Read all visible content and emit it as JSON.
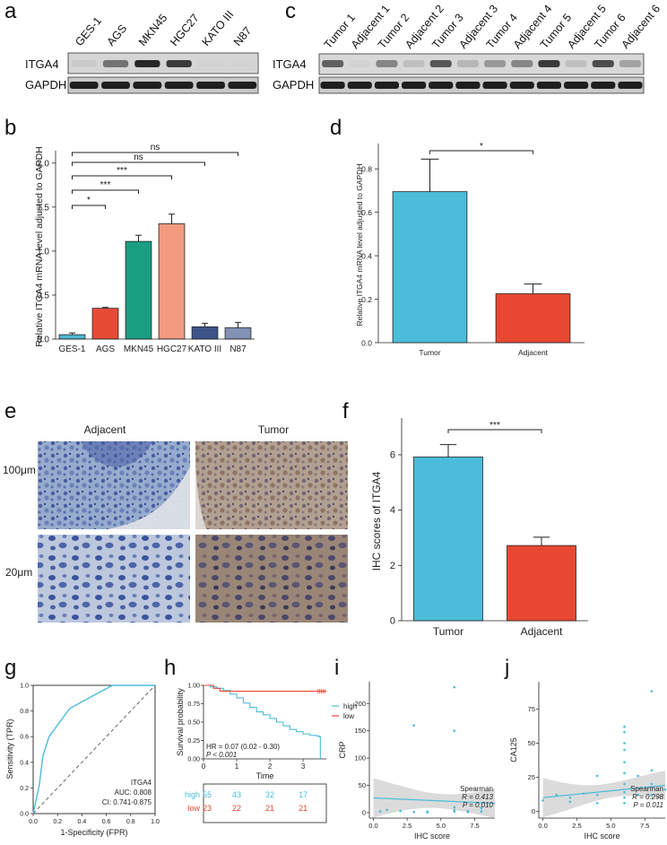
{
  "panel_labels": {
    "a": "a",
    "b": "b",
    "c": "c",
    "d": "d",
    "e": "e",
    "f": "f",
    "g": "g",
    "h": "h",
    "i": "i",
    "j": "j"
  },
  "blot_a": {
    "lanes": [
      "GES-1",
      "AGS",
      "MKN45",
      "HGC27",
      "KATO III",
      "N87"
    ],
    "rows": [
      "ITGA4",
      "GAPDH"
    ],
    "itga4_intensity": [
      0.1,
      0.55,
      0.95,
      0.85,
      0.05,
      0.05
    ]
  },
  "blot_c": {
    "lanes": [
      "Tumor 1",
      "Adjacent 1",
      "Tumor 2",
      "Adjacent 2",
      "Tumor 3",
      "Adjacent 3",
      "Tumor 4",
      "Adjacent 4",
      "Tumor 5",
      "Adjacent 5",
      "Tumor 6",
      "Adjacent 6"
    ],
    "rows": [
      "ITGA4",
      "GAPDH"
    ],
    "itga4_intensity": [
      0.65,
      0.05,
      0.45,
      0.15,
      0.7,
      0.2,
      0.35,
      0.45,
      0.85,
      0.15,
      0.75,
      0.3
    ]
  },
  "histology": {
    "columns": [
      "Adjacent",
      "Tumor"
    ],
    "rows": [
      "100μm",
      "20μm"
    ]
  },
  "chart_data": [
    {
      "id": "b",
      "type": "bar",
      "categories": [
        "GES-1",
        "AGS",
        "MKN45",
        "HGC27",
        "KATO III",
        "N87"
      ],
      "values": [
        0.05,
        0.35,
        1.11,
        1.31,
        0.14,
        0.13
      ],
      "errors": [
        0.02,
        0.01,
        0.07,
        0.11,
        0.04,
        0.06
      ],
      "colors": [
        "#4fb8cf",
        "#e84b35",
        "#1a9e81",
        "#f29b7e",
        "#3d5488",
        "#8391b5"
      ],
      "ylabel": "Relative ITGA4 mRNA level adjusted to GAPDH",
      "ylim": [
        0,
        2.1
      ],
      "yticks": [
        "0.0",
        "0.5",
        "1.0",
        "1.5",
        "2.0"
      ],
      "comparisons": [
        {
          "from": "GES-1",
          "to": "AGS",
          "label": "*"
        },
        {
          "from": "GES-1",
          "to": "MKN45",
          "label": "***"
        },
        {
          "from": "GES-1",
          "to": "HGC27",
          "label": "***"
        },
        {
          "from": "GES-1",
          "to": "KATO III",
          "label": "ns"
        },
        {
          "from": "GES-1",
          "to": "N87",
          "label": "ns"
        }
      ]
    },
    {
      "id": "d",
      "type": "bar",
      "categories": [
        "Tumor",
        "Adjacent"
      ],
      "values": [
        0.695,
        0.225
      ],
      "errors": [
        0.15,
        0.045
      ],
      "colors": [
        "#4bbcd9",
        "#e84832"
      ],
      "ylabel": "Relative ITGA4 mRNA level adjusted to GAPDH",
      "ylim": [
        0,
        0.9
      ],
      "yticks": [
        "0.0",
        "0.2",
        "0.4",
        "0.6",
        "0.8"
      ],
      "comparison": "*"
    },
    {
      "id": "f",
      "type": "bar",
      "categories": [
        "Tumor",
        "Adjacent"
      ],
      "values": [
        5.92,
        2.72
      ],
      "errors": [
        0.45,
        0.3
      ],
      "colors": [
        "#4bbcd9",
        "#e84832"
      ],
      "ylabel": "IHC scores of ITGA4",
      "ylim": [
        0,
        7.2
      ],
      "yticks": [
        "0",
        "2",
        "4",
        "6"
      ],
      "comparison": "***"
    },
    {
      "id": "g",
      "type": "line",
      "title": "ROC",
      "x": [
        0,
        0.05,
        0.08,
        0.13,
        0.3,
        0.65,
        1.0
      ],
      "y": [
        0,
        0.22,
        0.45,
        0.6,
        0.82,
        1.0,
        1.0
      ],
      "xlabel": "1-Specificity (FPR)",
      "ylabel": "Sensitivity (TPR)",
      "xlim": [
        0,
        1
      ],
      "ylim": [
        0,
        1
      ],
      "ticks": [
        "0.0",
        "0.2",
        "0.4",
        "0.6",
        "0.8",
        "1.0"
      ],
      "annotation": [
        "ITGA4",
        "AUC: 0.808",
        "CI: 0.741-0.875"
      ]
    },
    {
      "id": "h",
      "type": "line",
      "xlabel": "Time",
      "ylabel": "Survival probability",
      "xlim": [
        0,
        3.7
      ],
      "ylim": [
        0,
        1
      ],
      "xticks": [
        "0",
        "1",
        "2",
        "3"
      ],
      "yticks": [
        "0.00",
        "0.25",
        "0.50",
        "0.75",
        "1.00"
      ],
      "series": [
        {
          "name": "high",
          "color": "#4bbcd9",
          "x": [
            0,
            0.2,
            0.4,
            0.6,
            0.8,
            1.0,
            1.2,
            1.4,
            1.6,
            1.8,
            2.0,
            2.2,
            2.4,
            2.6,
            2.8,
            3.0,
            3.2,
            3.4,
            3.5,
            3.52
          ],
          "y": [
            1.0,
            0.98,
            0.96,
            0.93,
            0.88,
            0.83,
            0.76,
            0.7,
            0.64,
            0.6,
            0.55,
            0.5,
            0.45,
            0.4,
            0.37,
            0.34,
            0.32,
            0.31,
            0.3,
            0.0
          ]
        },
        {
          "name": "low",
          "color": "#e84832",
          "x": [
            0,
            0.3,
            0.5,
            3.7
          ],
          "y": [
            1.0,
            0.96,
            0.92,
            0.92
          ]
        }
      ],
      "annotation": [
        "HR = 0.07 (0.02 - 0.30)",
        "P < 0.001"
      ],
      "risk_table": [
        {
          "name": "high",
          "counts": [
            "55",
            "43",
            "32",
            "17"
          ]
        },
        {
          "name": "low",
          "counts": [
            "23",
            "22",
            "21",
            "21"
          ]
        }
      ]
    },
    {
      "id": "i",
      "type": "scatter",
      "xlabel": "IHC score",
      "ylabel": "CRP",
      "xlim": [
        -0.3,
        9
      ],
      "ylim": [
        -10,
        240
      ],
      "xticks": [
        "0.0",
        "2.5",
        "5.0",
        "7.5"
      ],
      "yticks": [
        "0",
        "50",
        "100",
        "150",
        "200"
      ],
      "points": [
        [
          0.5,
          2
        ],
        [
          1,
          5
        ],
        [
          2,
          3
        ],
        [
          3,
          160
        ],
        [
          3,
          1
        ],
        [
          4,
          2
        ],
        [
          4,
          0
        ],
        [
          6,
          230
        ],
        [
          6,
          150
        ],
        [
          6,
          10
        ],
        [
          6,
          2
        ],
        [
          6,
          5
        ],
        [
          7,
          3
        ],
        [
          7,
          1
        ],
        [
          8,
          8
        ],
        [
          8,
          2
        ]
      ],
      "fit": [
        [
          0,
          27
        ],
        [
          9,
          17
        ]
      ],
      "annotation": [
        "Spearman",
        "R = 0.413",
        "P = 0.010"
      ]
    },
    {
      "id": "j",
      "type": "scatter",
      "xlabel": "IHC score",
      "ylabel": "CA125",
      "xlim": [
        -0.3,
        9
      ],
      "ylim": [
        -5,
        95
      ],
      "xticks": [
        "0.0",
        "2.5",
        "5.0",
        "7.5"
      ],
      "yticks": [
        "0",
        "25",
        "50",
        "75"
      ],
      "points": [
        [
          0,
          8
        ],
        [
          1,
          12
        ],
        [
          2,
          7
        ],
        [
          2,
          10
        ],
        [
          3,
          13
        ],
        [
          4,
          26
        ],
        [
          4,
          12
        ],
        [
          4,
          6
        ],
        [
          6,
          62
        ],
        [
          6,
          58
        ],
        [
          6,
          50
        ],
        [
          6,
          45
        ],
        [
          6,
          36
        ],
        [
          6,
          28
        ],
        [
          6,
          20
        ],
        [
          6,
          14
        ],
        [
          6,
          10
        ],
        [
          6,
          6
        ],
        [
          7,
          26
        ],
        [
          7,
          12
        ],
        [
          8,
          88
        ],
        [
          8,
          30
        ],
        [
          8,
          20
        ],
        [
          8,
          12
        ],
        [
          9,
          16
        ]
      ],
      "fit": [
        [
          0,
          10
        ],
        [
          9,
          19
        ]
      ],
      "annotation": [
        "Spearman",
        "R = 0.298",
        "P = 0.011"
      ]
    }
  ]
}
